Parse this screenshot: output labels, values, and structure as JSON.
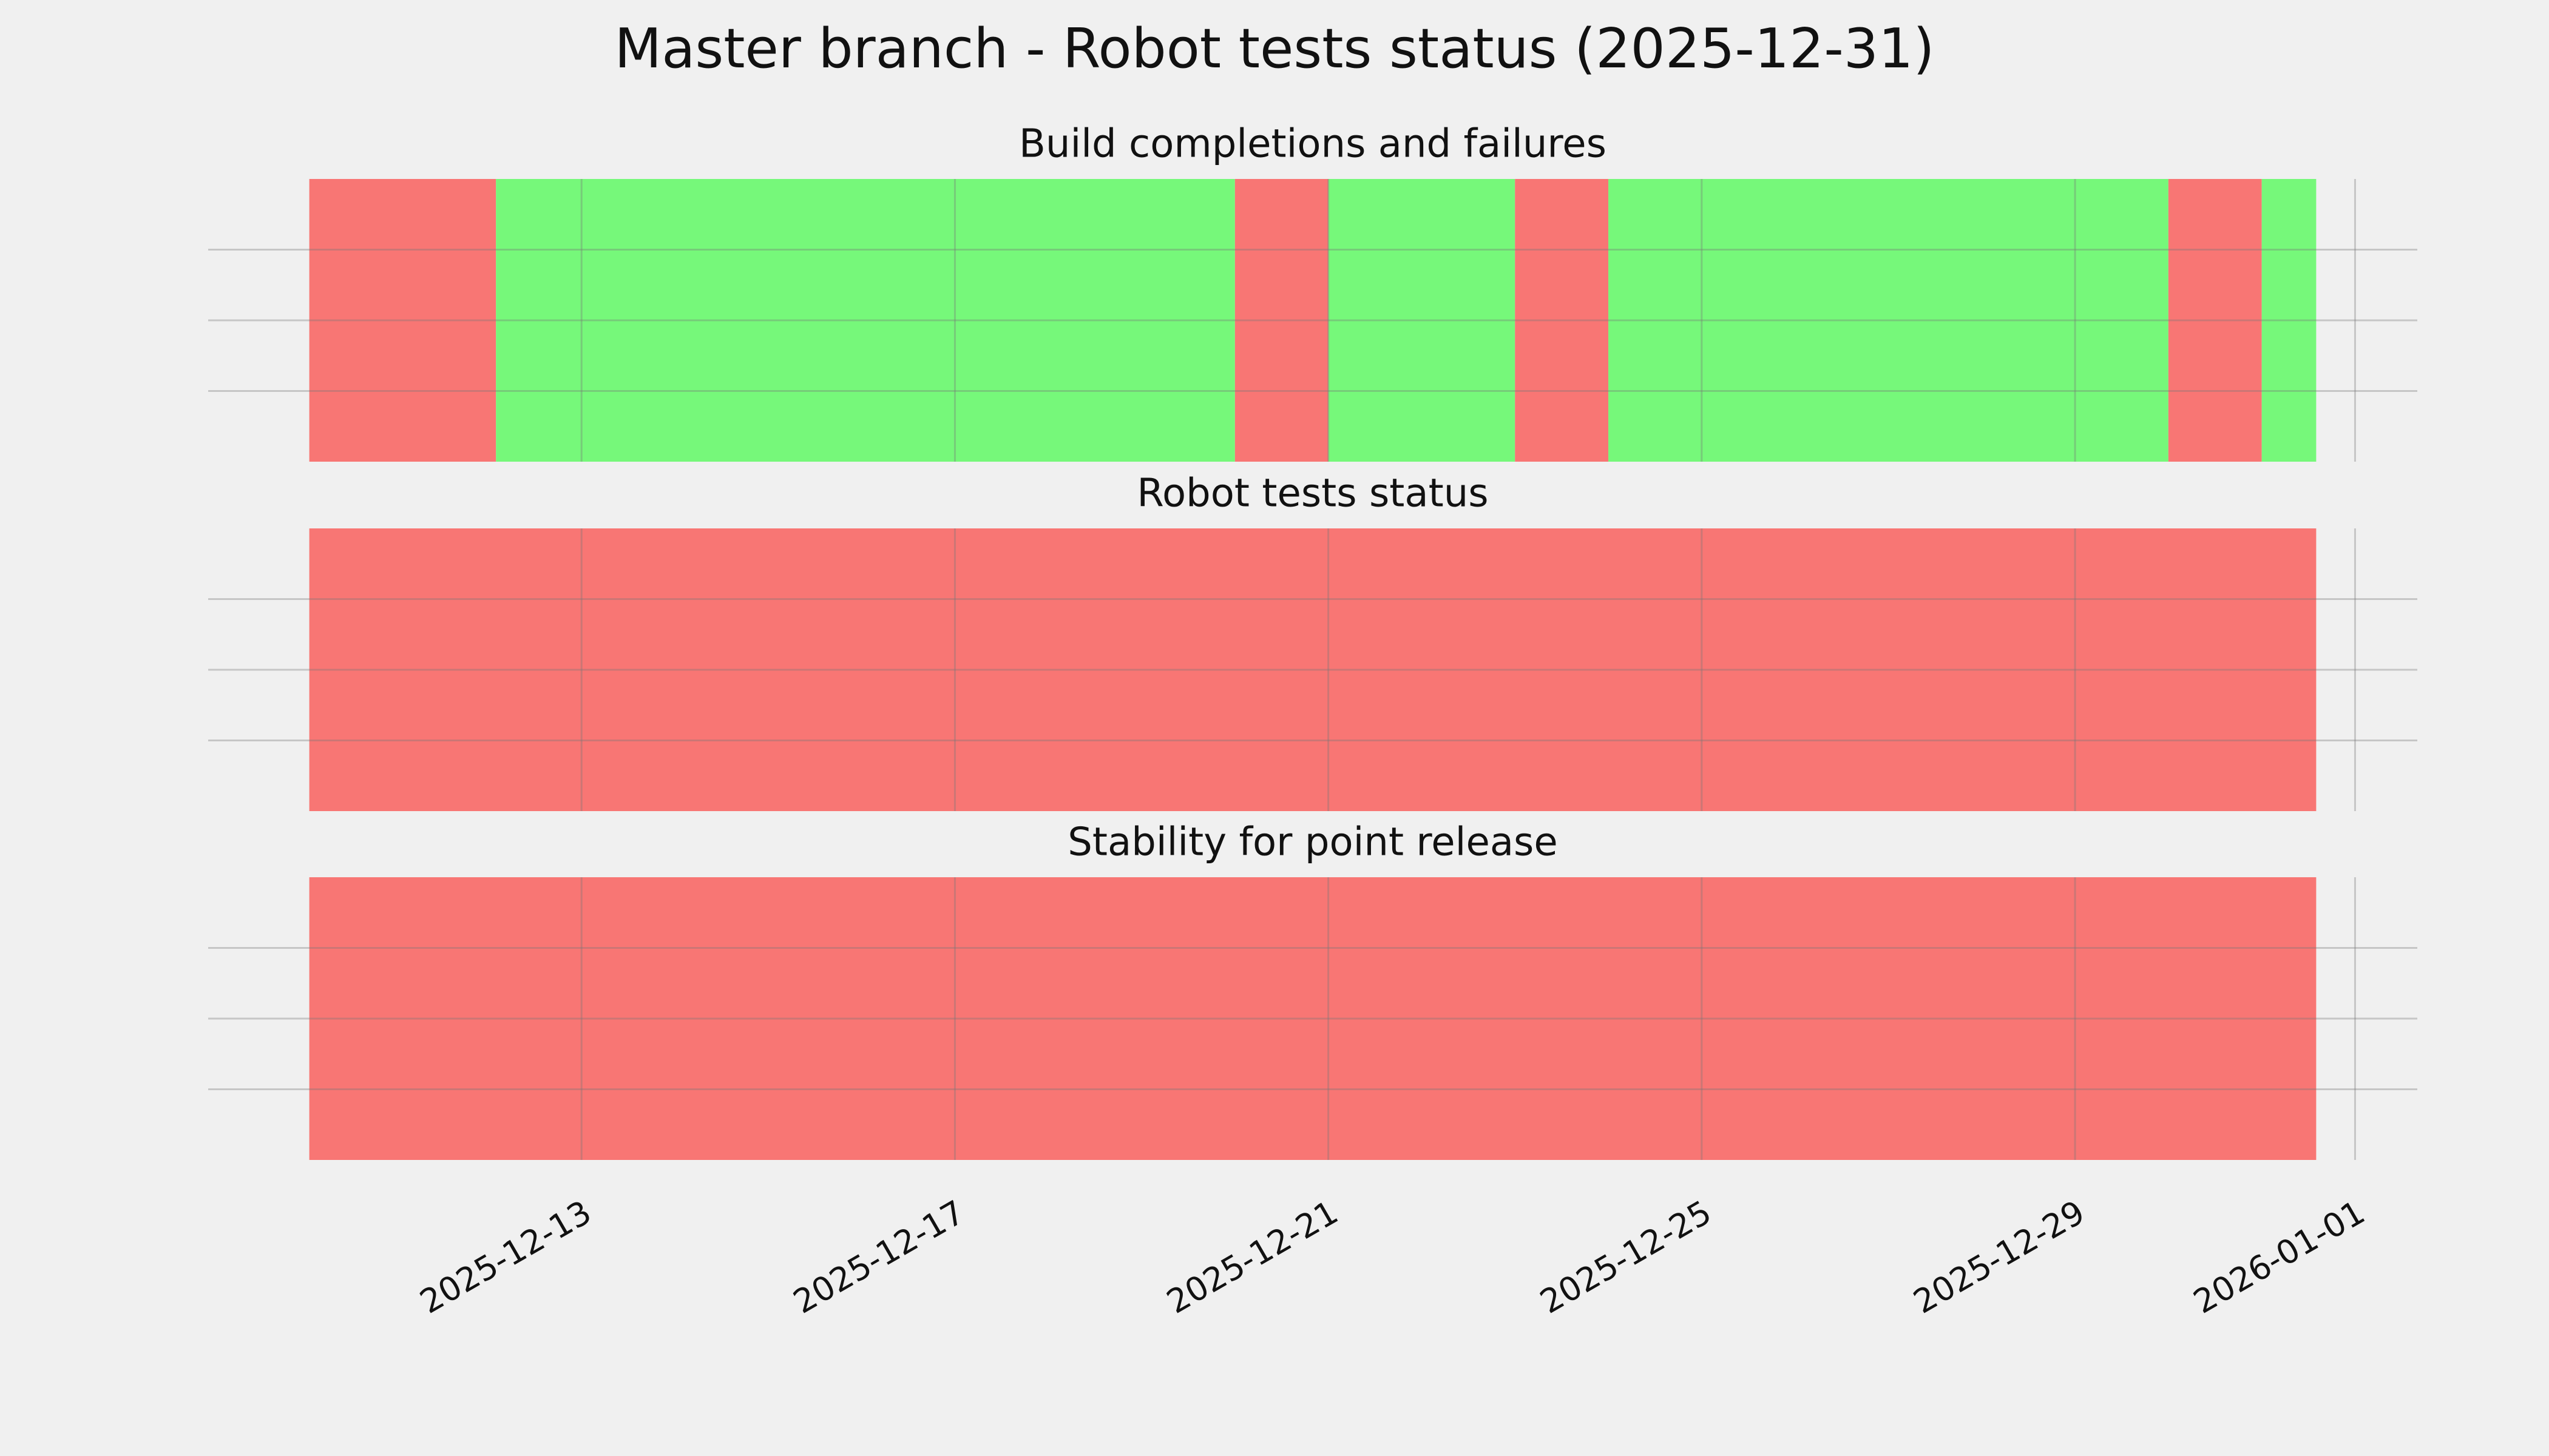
{
  "chart_data": {
    "type": "timeline",
    "title": "Master branch - Robot tests status (2025-12-31)",
    "xlim": [
      "2025-12-09T00:00",
      "2026-01-01T16:00"
    ],
    "xticks": [
      "2025-12-13",
      "2025-12-17",
      "2025-12-21",
      "2025-12-25",
      "2025-12-29",
      "2026-01-01"
    ],
    "grid": true,
    "panels": [
      {
        "title": "Build completions and failures",
        "ylim": [
          0,
          1
        ],
        "yticks": [
          0.25,
          0.5,
          0.75
        ],
        "segments": [
          {
            "start": "2025-12-10T02:00",
            "end": "2025-12-12T02:00",
            "color": "#f87674"
          },
          {
            "start": "2025-12-12T02:00",
            "end": "2025-12-20T00:00",
            "color": "#76f87a"
          },
          {
            "start": "2025-12-20T00:00",
            "end": "2025-12-21T00:00",
            "color": "#f87674"
          },
          {
            "start": "2025-12-21T00:00",
            "end": "2025-12-23T00:00",
            "color": "#76f87a"
          },
          {
            "start": "2025-12-23T00:00",
            "end": "2025-12-24T00:00",
            "color": "#f87674"
          },
          {
            "start": "2025-12-24T00:00",
            "end": "2025-12-30T00:00",
            "color": "#76f87a"
          },
          {
            "start": "2025-12-30T00:00",
            "end": "2025-12-31T00:00",
            "color": "#f87674"
          },
          {
            "start": "2025-12-31T00:00",
            "end": "2025-12-31T14:00",
            "color": "#76f87a"
          }
        ]
      },
      {
        "title": "Robot tests status",
        "ylim": [
          0,
          1
        ],
        "yticks": [
          0.25,
          0.5,
          0.75
        ],
        "segments": [
          {
            "start": "2025-12-10T02:00",
            "end": "2025-12-31T14:00",
            "color": "#f87674"
          }
        ]
      },
      {
        "title": "Stability for point release",
        "ylim": [
          0,
          1
        ],
        "yticks": [
          0.25,
          0.5,
          0.75
        ],
        "segments": [
          {
            "start": "2025-12-10T02:00",
            "end": "2025-12-31T14:00",
            "color": "#f87674"
          }
        ]
      }
    ]
  }
}
